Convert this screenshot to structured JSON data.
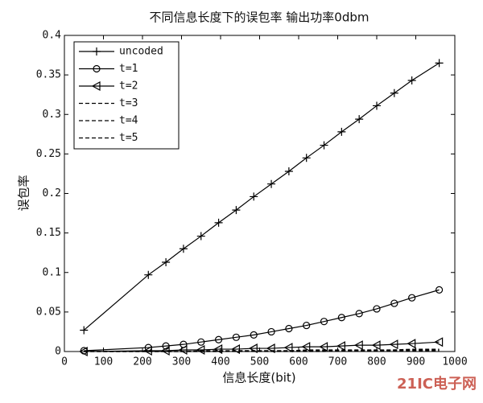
{
  "chart_data": {
    "type": "line",
    "title": "不同信息长度下的误包率 输出功率0dbm",
    "x_label": "信息长度(bit)",
    "y_label": "误包率",
    "watermark": "21IC电子网",
    "x": [
      50,
      215,
      260,
      305,
      350,
      395,
      440,
      485,
      530,
      575,
      620,
      665,
      710,
      755,
      800,
      845,
      890,
      960
    ],
    "series": [
      {
        "name": "uncoded",
        "color": "#000000",
        "marker": "plus",
        "dash": "solid",
        "values": [
          0.027,
          0.097,
          0.113,
          0.13,
          0.146,
          0.163,
          0.179,
          0.196,
          0.212,
          0.228,
          0.245,
          0.261,
          0.278,
          0.294,
          0.311,
          0.327,
          0.343,
          0.365
        ]
      },
      {
        "name": "t=1",
        "color": "#000000",
        "marker": "circle",
        "dash": "solid",
        "values": [
          0.001,
          0.005,
          0.007,
          0.009,
          0.012,
          0.015,
          0.018,
          0.021,
          0.025,
          0.029,
          0.033,
          0.038,
          0.043,
          0.048,
          0.054,
          0.061,
          0.068,
          0.078
        ]
      },
      {
        "name": "t=2",
        "color": "#000000",
        "marker": "triangle-left",
        "dash": "solid",
        "values": [
          0,
          0.001,
          0.001,
          0.002,
          0.002,
          0.003,
          0.003,
          0.004,
          0.004,
          0.005,
          0.006,
          0.006,
          0.007,
          0.008,
          0.008,
          0.009,
          0.01,
          0.012
        ]
      },
      {
        "name": "t=3",
        "color": "#000000",
        "marker": "none",
        "dash": "dashed",
        "values": [
          0,
          0,
          0,
          0,
          0.001,
          0.001,
          0.001,
          0.001,
          0.001,
          0.001,
          0.002,
          0.002,
          0.002,
          0.002,
          0.002,
          0.002,
          0.003,
          0.003
        ]
      },
      {
        "name": "t=4",
        "color": "#000000",
        "marker": "none",
        "dash": "dashed",
        "values": [
          0,
          0,
          0,
          0,
          0,
          0,
          0.001,
          0.001,
          0.001,
          0.001,
          0.001,
          0.001,
          0.001,
          0.001,
          0.001,
          0.002,
          0.002,
          0.002
        ]
      },
      {
        "name": "t=5",
        "color": "#000000",
        "marker": "none",
        "dash": "dashed",
        "values": [
          0,
          0,
          0,
          0,
          0,
          0,
          0,
          0,
          0,
          0,
          0,
          0,
          0.001,
          0.001,
          0.001,
          0.001,
          0.001,
          0.001
        ]
      }
    ],
    "xlim": [
      0,
      1000
    ],
    "xticks": [
      0,
      100,
      200,
      300,
      400,
      500,
      600,
      700,
      800,
      900,
      1000
    ],
    "ylim": [
      0,
      0.4
    ],
    "yticks": [
      0,
      0.05,
      0.1,
      0.15,
      0.2,
      0.25,
      0.3,
      0.35,
      0.4
    ],
    "grid": false,
    "legend_position": "upper-left"
  }
}
